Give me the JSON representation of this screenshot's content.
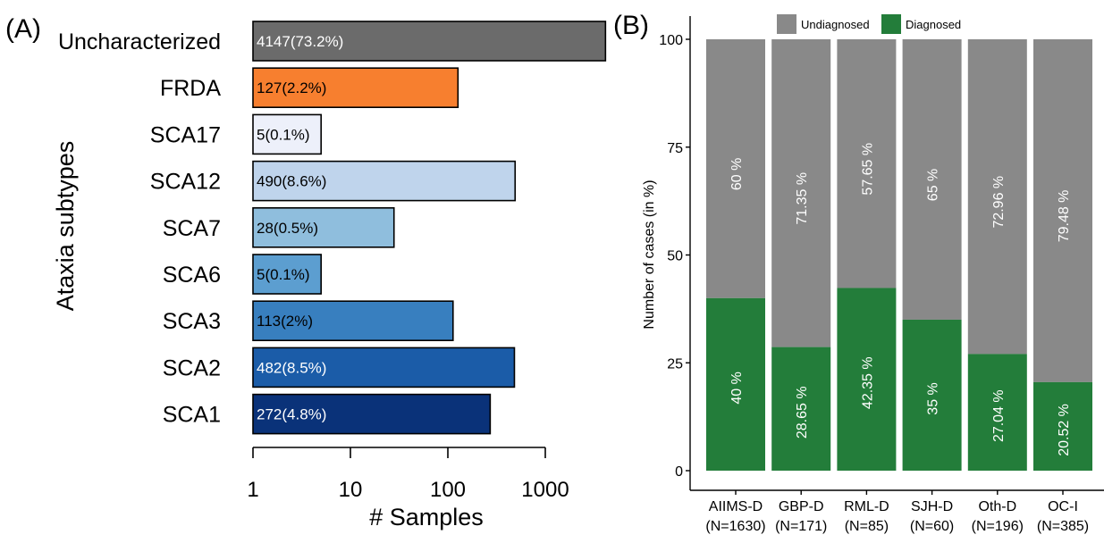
{
  "chart_data": [
    {
      "type": "bar",
      "orientation": "horizontal",
      "panel_label": "(A)",
      "ylabel": "Ataxia subtypes",
      "xlabel": "# Samples",
      "x_scale": "log10",
      "xlim": [
        1,
        4147
      ],
      "x_ticks": [
        "1",
        "10",
        "100",
        "1000"
      ],
      "categories": [
        "Uncharacterized",
        "FRDA",
        "SCA17",
        "SCA12",
        "SCA7",
        "SCA6",
        "SCA3",
        "SCA2",
        "SCA1"
      ],
      "values": [
        4147,
        127,
        5,
        490,
        28,
        5,
        113,
        482,
        272
      ],
      "data_labels": [
        "4147(73.2%)",
        "127(2.2%)",
        "5(0.1%)",
        "490(8.6%)",
        "28(0.5%)",
        "5(0.1%)",
        "113(2%)",
        "482(8.5%)",
        "272(4.8%)"
      ],
      "colors": [
        "#6b6b6b",
        "#f77f2f",
        "#edf0fa",
        "#bfd4ec",
        "#8fbedd",
        "#5c9ed0",
        "#387fbf",
        "#1b5ca8",
        "#0a3279"
      ],
      "label_colors": [
        "#ffffff",
        "#000000",
        "#000000",
        "#000000",
        "#000000",
        "#000000",
        "#000000",
        "#ffffff",
        "#ffffff"
      ]
    },
    {
      "type": "bar",
      "stacked": true,
      "panel_label": "(B)",
      "ylabel": "Number of cases (in %)",
      "xlabel": "",
      "ylim": [
        0,
        100
      ],
      "y_ticks": [
        "0",
        "25",
        "50",
        "75",
        "100"
      ],
      "categories": [
        {
          "name": "AIIMS-D",
          "n": "(N=1630)"
        },
        {
          "name": "GBP-D",
          "n": "(N=171)"
        },
        {
          "name": "RML-D",
          "n": "(N=85)"
        },
        {
          "name": "SJH-D",
          "n": "(N=60)"
        },
        {
          "name": "Oth-D",
          "n": "(N=196)"
        },
        {
          "name": "OC-I",
          "n": "(N=385)"
        }
      ],
      "legend": [
        "Undiagnosed",
        "Diagnosed"
      ],
      "legend_position": "top",
      "series": [
        {
          "name": "Diagnosed",
          "color": "#237d3a",
          "values": [
            40,
            28.65,
            42.35,
            35,
            27.04,
            20.52
          ],
          "labels": [
            "40 %",
            "28.65 %",
            "42.35 %",
            "35 %",
            "27.04 %",
            "20.52 %"
          ]
        },
        {
          "name": "Undiagnosed",
          "color": "#898989",
          "values": [
            60,
            71.35,
            57.65,
            65,
            72.96,
            79.48
          ],
          "labels": [
            "60 %",
            "71.35 %",
            "57.65 %",
            "65 %",
            "72.96 %",
            "79.48 %"
          ]
        }
      ]
    }
  ]
}
